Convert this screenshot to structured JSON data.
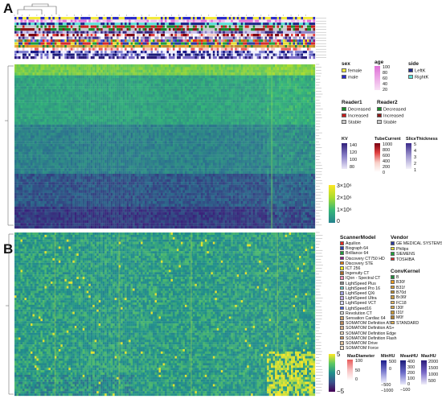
{
  "panels": {
    "a": "A",
    "b": "B"
  },
  "legends": {
    "sex": {
      "title": "sex",
      "items": [
        {
          "label": "female",
          "color": "#f2ea3c"
        },
        {
          "label": "male",
          "color": "#2a2ac8"
        }
      ]
    },
    "age": {
      "title": "age",
      "ticks": [
        "100",
        "80",
        "60",
        "40",
        "20"
      ]
    },
    "side": {
      "title": "side",
      "items": [
        {
          "label": "LeftK",
          "color": "#1f2a8c"
        },
        {
          "label": "RightK",
          "color": "#5fe0d8"
        }
      ]
    },
    "reader1": {
      "title": "Reader1",
      "items": [
        {
          "label": "Decreased",
          "color": "#1a8a2a"
        },
        {
          "label": "Increased",
          "color": "#c81c1c"
        },
        {
          "label": "Stable",
          "color": "#c8c8c8"
        }
      ]
    },
    "reader2": {
      "title": "Reader2",
      "items": [
        {
          "label": "Decreased",
          "color": "#1a8a2a"
        },
        {
          "label": "Increased",
          "color": "#8c1a1a"
        },
        {
          "label": "Stable",
          "color": "#c8c8c8"
        }
      ]
    },
    "kv": {
      "title": "KV",
      "ticks": [
        "140",
        "120",
        "100",
        "80"
      ]
    },
    "tube_current": {
      "title": "TubeCurrent",
      "ticks": [
        "1000",
        "800",
        "600",
        "400",
        "200",
        "0"
      ]
    },
    "slice_thickness": {
      "title": "SliceThickness",
      "ticks": [
        "5",
        "4",
        "3",
        "2",
        "1"
      ]
    },
    "heat_a": {
      "ticks": [
        "3×10⁶",
        "2×10⁶",
        "1×10⁶",
        "0"
      ]
    },
    "scanner_model": {
      "title": "ScannerModel",
      "items": [
        {
          "label": "Aquilion",
          "color": "#e8281e"
        },
        {
          "label": "Biograph 64",
          "color": "#2e3ea8"
        },
        {
          "label": "Brilliance 64",
          "color": "#1e9a3a"
        },
        {
          "label": "Discovery CT750 HD",
          "color": "#8a1a8a"
        },
        {
          "label": "Discovery STE",
          "color": "#e07a10"
        },
        {
          "label": "ICT 256",
          "color": "#f0e81a"
        },
        {
          "label": "Ingenuity CT",
          "color": "#a86a2a"
        },
        {
          "label": "IQon - Spectral CT",
          "color": "#f08cb4"
        },
        {
          "label": "LightSpeed Plus",
          "color": "#8a8a8a"
        },
        {
          "label": "LightSpeed Pro 16",
          "color": "#6ac4c4"
        },
        {
          "label": "LightSpeed QXi",
          "color": "#a0a0e0"
        },
        {
          "label": "LightSpeed Ultra",
          "color": "#c0a8e8"
        },
        {
          "label": "LightSpeed VCT",
          "color": "#d8d8f8"
        },
        {
          "label": "LightSpeed16",
          "color": "#4a62e0"
        },
        {
          "label": "Revolution CT",
          "color": "#e0e0e0"
        },
        {
          "label": "Sensation Cardiac 64",
          "color": "#c8a070"
        },
        {
          "label": "SOMATOM Definition AS",
          "color": "#b88858"
        },
        {
          "label": "SOMATOM Definition AS+",
          "color": "#d8b088"
        },
        {
          "label": "SOMATOM Definition Edge",
          "color": "#f0d8b8"
        },
        {
          "label": "SOMATOM Definition Flash",
          "color": "#c89868"
        },
        {
          "label": "SOMATOM Drive",
          "color": "#e0c098"
        },
        {
          "label": "SOMATOM Force",
          "color": "#f4e0c8"
        }
      ]
    },
    "vendor": {
      "title": "Vendor",
      "items": [
        {
          "label": "GE MEDICAL SYSTEMS",
          "color": "#2a3aa0"
        },
        {
          "label": "Philips",
          "color": "#e8e030"
        },
        {
          "label": "SIEMENS",
          "color": "#1ea03a"
        },
        {
          "label": "TOSHIBA",
          "color": "#d8282a"
        }
      ]
    },
    "conv_kernel": {
      "title": "ConvKernel",
      "items": [
        {
          "label": "B",
          "color": "#1e8a3a"
        },
        {
          "label": "B30f",
          "color": "#e89a20"
        },
        {
          "label": "B31f",
          "color": "#d8a030"
        },
        {
          "label": "B70d",
          "color": "#b88a30"
        },
        {
          "label": "Br36f",
          "color": "#c89a40"
        },
        {
          "label": "FC18",
          "color": "#e8b860"
        },
        {
          "label": "I30f",
          "color": "#d8a848"
        },
        {
          "label": "I31f",
          "color": "#c89838"
        },
        {
          "label": "M0f",
          "color": "#b08030"
        },
        {
          "label": "STANDARD",
          "color": "#e0b050"
        }
      ]
    },
    "heat_b": {
      "ticks": [
        "5",
        "0",
        "−5"
      ]
    },
    "max_diameter": {
      "title": "MaxDiameter",
      "ticks": [
        "100",
        "50",
        "0"
      ]
    },
    "min_hu": {
      "title": "MinHU",
      "ticks": [
        "500",
        "0",
        "−500",
        "−1000"
      ]
    },
    "mean_hu": {
      "title": "MeanHU",
      "ticks": [
        "400",
        "300",
        "200",
        "100",
        "0",
        "−100"
      ]
    },
    "max_hu": {
      "title": "MaxHU",
      "ticks": [
        "2000",
        "1500",
        "1000",
        "500"
      ]
    }
  },
  "chart_data": [
    {
      "type": "heatmap",
      "panel": "A",
      "description_value_range": [
        0,
        3000000
      ],
      "colorbar_ticks": [
        3000000,
        2000000,
        1000000,
        0
      ],
      "annotation_tracks": [
        "sex",
        "age",
        "side",
        "Reader1",
        "Reader2",
        "KV",
        "TubeCurrent",
        "SliceThickness",
        "ScannerModel",
        "Vendor",
        "ConvKernel",
        "MaxDiameter",
        "MinHU",
        "MeanHU",
        "MaxHU"
      ],
      "colors": {
        "low": "#a9dc2e",
        "mid": "#26828e",
        "high": "#3b1f7a"
      }
    },
    {
      "type": "heatmap",
      "panel": "B",
      "value_range": [
        -5,
        5
      ],
      "colorbar_ticks": [
        5,
        0,
        -5
      ],
      "colors": {
        "low": "#440154",
        "mid": "#21908d",
        "high": "#fde725"
      }
    }
  ]
}
